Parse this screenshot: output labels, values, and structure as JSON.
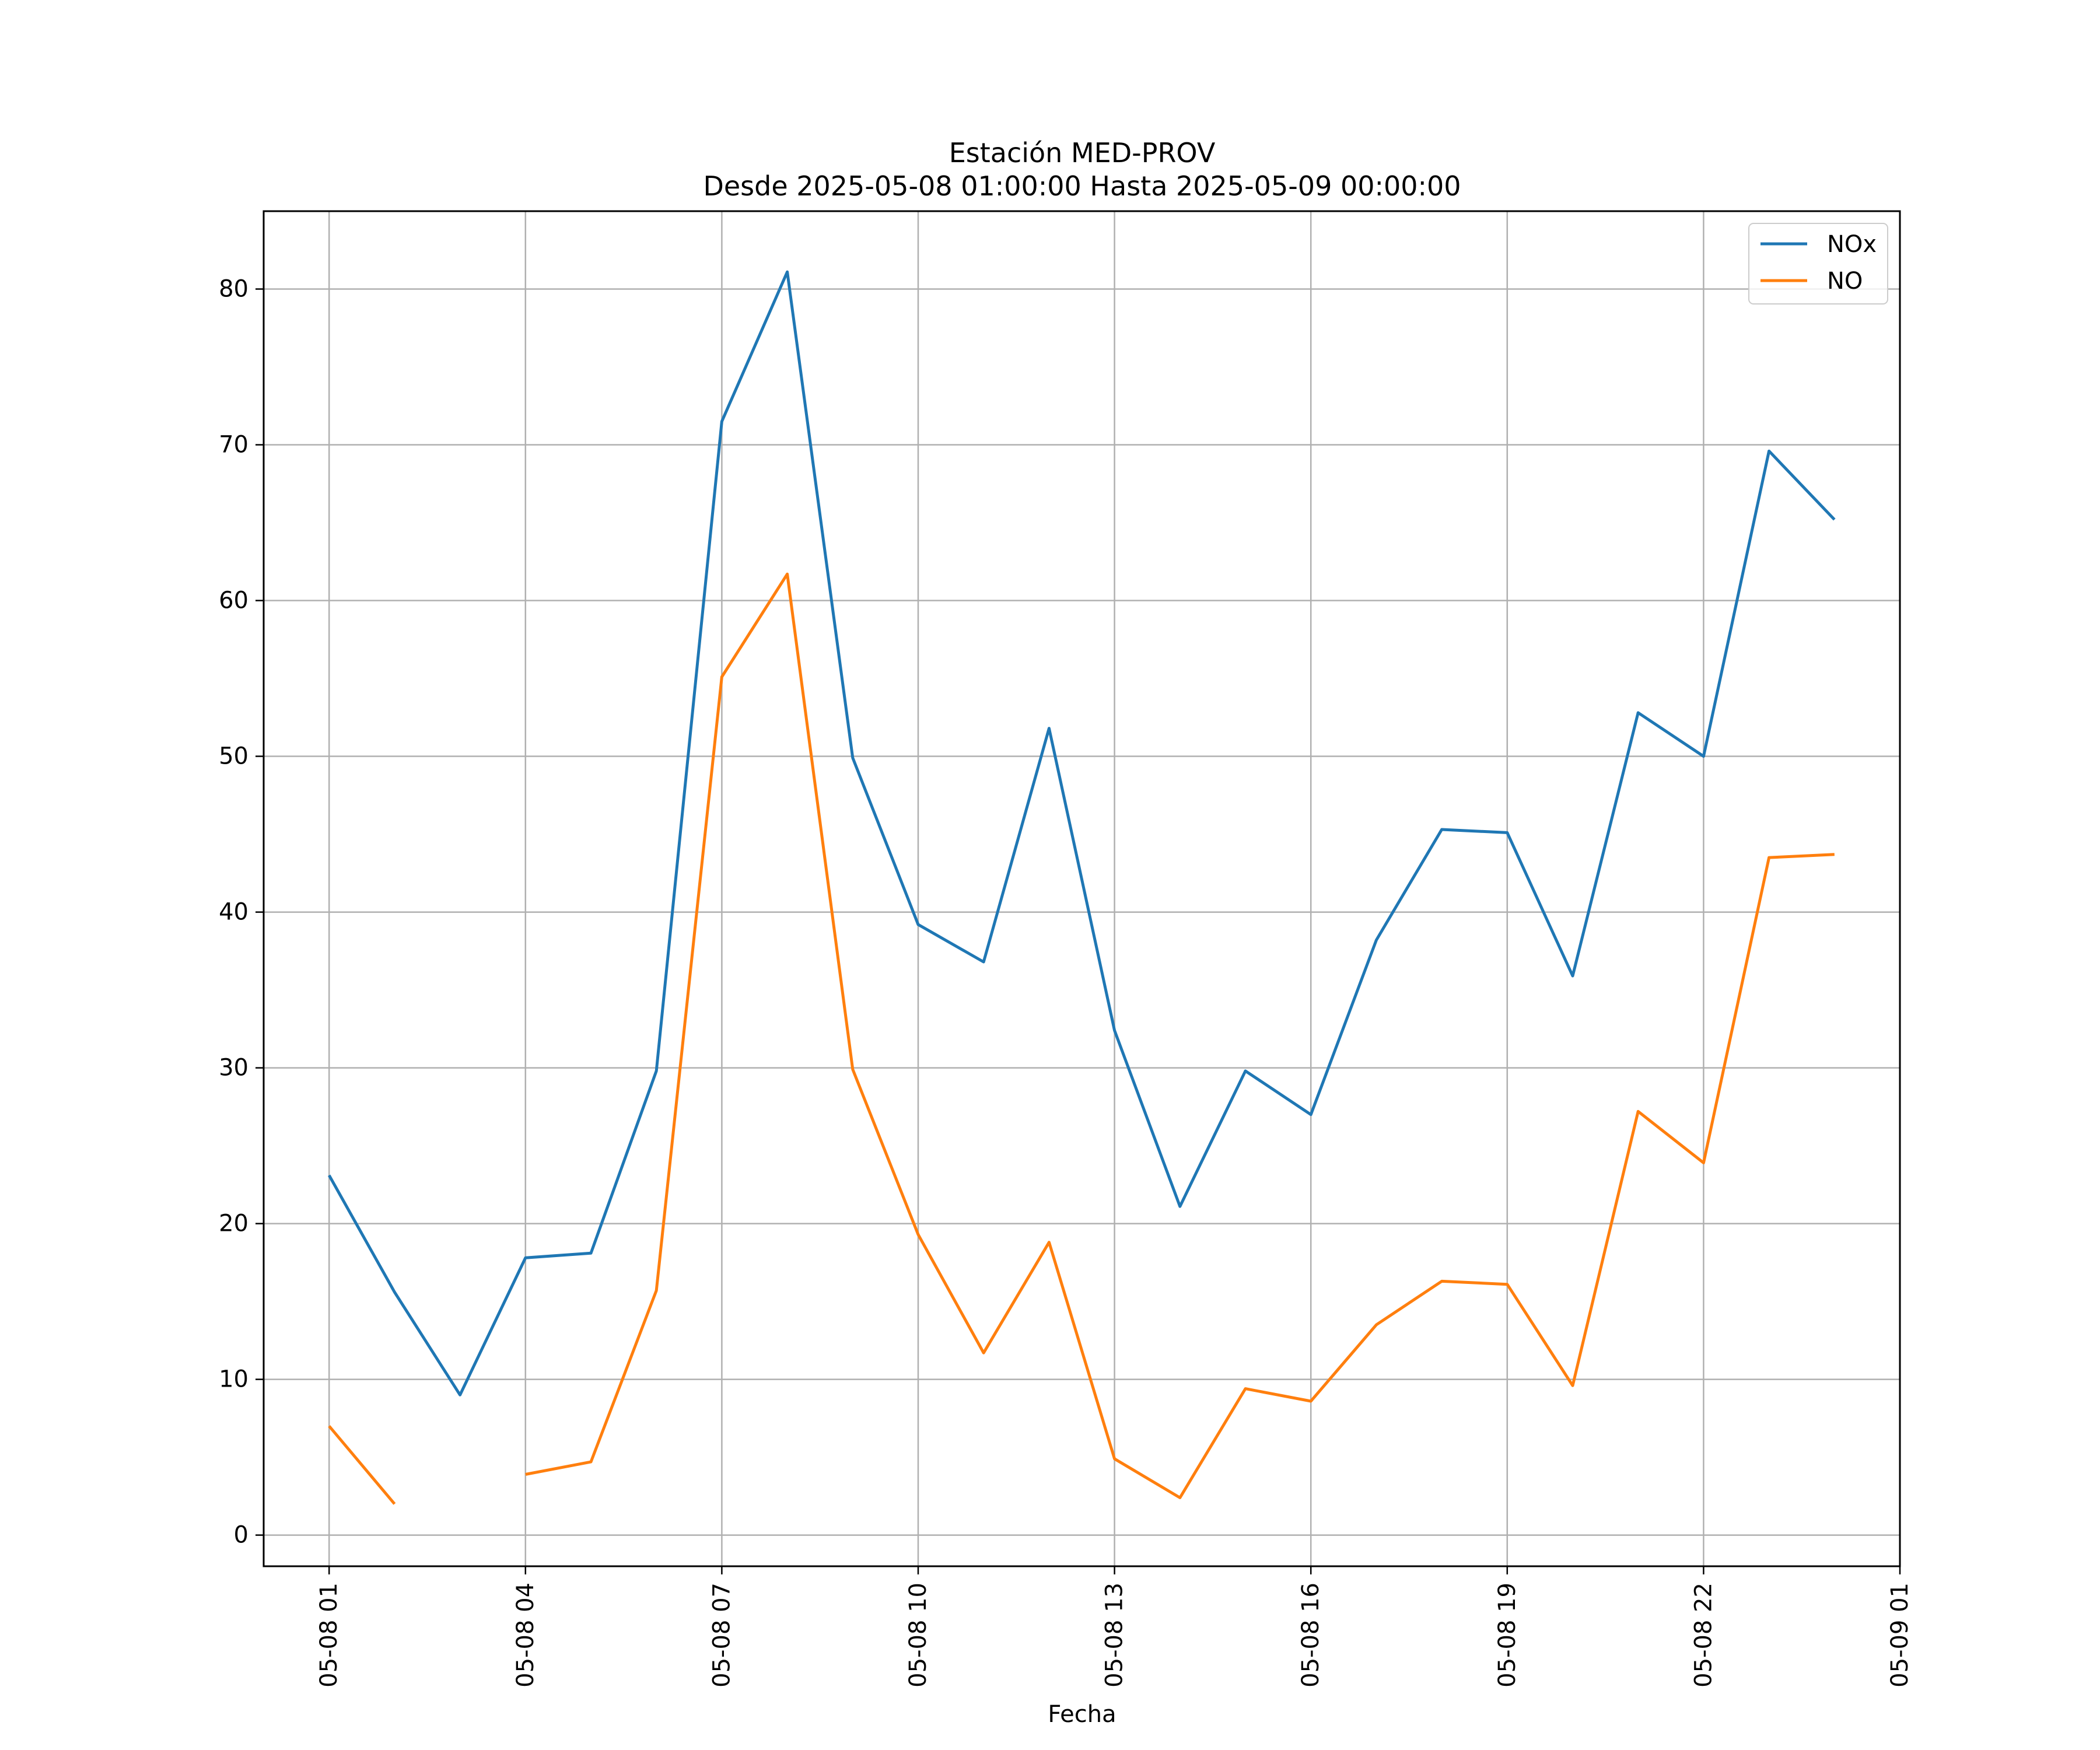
{
  "chart_data": {
    "type": "line",
    "title": "Estación MED-PROV",
    "subtitle": "Desde 2025-05-08 01:00:00 Hasta 2025-05-09 00:00:00",
    "xlabel": "Fecha",
    "ylabel": "",
    "x": [
      "05-08 01",
      "05-08 02",
      "05-08 03",
      "05-08 04",
      "05-08 05",
      "05-08 06",
      "05-08 07",
      "05-08 08",
      "05-08 09",
      "05-08 10",
      "05-08 11",
      "05-08 12",
      "05-08 13",
      "05-08 14",
      "05-08 15",
      "05-08 16",
      "05-08 17",
      "05-08 18",
      "05-08 19",
      "05-08 20",
      "05-08 21",
      "05-08 22",
      "05-08 23",
      "05-09 00"
    ],
    "series": [
      {
        "name": "NOx",
        "color": "#1f77b4",
        "values": [
          23.1,
          15.6,
          9.0,
          17.8,
          18.1,
          29.8,
          71.5,
          81.1,
          49.9,
          39.2,
          36.8,
          51.8,
          32.4,
          21.1,
          29.8,
          27.0,
          38.2,
          45.3,
          45.1,
          35.9,
          52.8,
          50.0,
          69.6,
          65.2
        ]
      },
      {
        "name": "NO",
        "color": "#ff7f0e",
        "values": [
          7.0,
          2.0,
          null,
          3.9,
          4.7,
          15.7,
          55.1,
          61.7,
          29.9,
          19.3,
          11.7,
          18.8,
          4.9,
          2.4,
          9.4,
          8.6,
          13.5,
          16.3,
          16.1,
          9.6,
          27.2,
          23.9,
          43.5,
          43.7
        ]
      }
    ],
    "xticks": [
      "05-08 01",
      "05-08 04",
      "05-08 07",
      "05-08 10",
      "05-08 13",
      "05-08 16",
      "05-08 19",
      "05-08 22",
      "05-09 01"
    ],
    "yticks": [
      0,
      10,
      20,
      30,
      40,
      50,
      60,
      70,
      80
    ],
    "ylim": [
      -2,
      85
    ],
    "xlim": [
      "05-08 00",
      "05-09 01"
    ],
    "grid": true,
    "legend_position": "top-right"
  }
}
